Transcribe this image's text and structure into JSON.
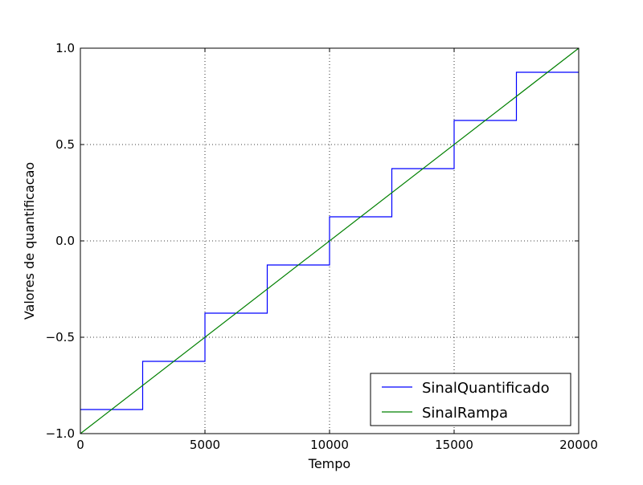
{
  "chart_data": {
    "type": "line",
    "title": "",
    "xlabel": "Tempo",
    "ylabel": "Valores de quantificacao",
    "xlim": [
      0,
      20000
    ],
    "ylim": [
      -1.0,
      1.0
    ],
    "xticks": [
      0,
      5000,
      10000,
      15000,
      20000
    ],
    "xtick_labels": [
      "0",
      "5000",
      "10000",
      "15000",
      "20000"
    ],
    "yticks": [
      -1.0,
      -0.5,
      0.0,
      0.5,
      1.0
    ],
    "ytick_labels": [
      "−1.0",
      "−0.5",
      "0.0",
      "0.5",
      "1.0"
    ],
    "grid": true,
    "legend_position": "lower-right",
    "series": [
      {
        "name": "SinalQuantificado",
        "color": "#0000ff",
        "style": "step",
        "x": [
          0,
          2500,
          2500,
          5000,
          5000,
          7500,
          7500,
          10000,
          10000,
          12500,
          12500,
          15000,
          15000,
          17500,
          17500,
          20000
        ],
        "y": [
          -0.875,
          -0.875,
          -0.625,
          -0.625,
          -0.375,
          -0.375,
          -0.125,
          -0.125,
          0.125,
          0.125,
          0.375,
          0.375,
          0.625,
          0.625,
          0.875,
          0.875
        ]
      },
      {
        "name": "SinalRampa",
        "color": "#008000",
        "style": "line",
        "x": [
          0,
          20000
        ],
        "y": [
          -1.0,
          1.0
        ]
      }
    ]
  }
}
